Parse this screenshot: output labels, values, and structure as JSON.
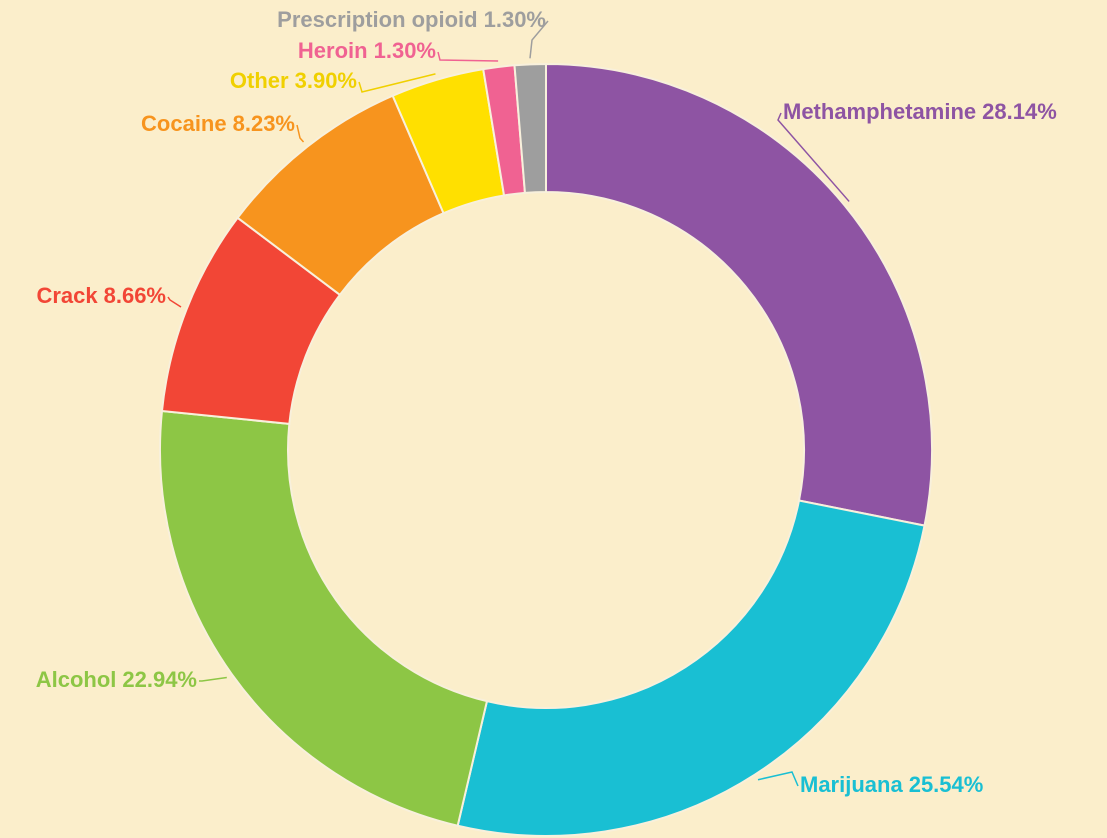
{
  "chart_data": {
    "type": "donut",
    "categories": [
      "Methamphetamine",
      "Marijuana",
      "Alcohol",
      "Crack",
      "Cocaine",
      "Other",
      "Heroin",
      "Prescription opioid"
    ],
    "values": [
      28.14,
      25.54,
      22.94,
      8.66,
      8.23,
      3.9,
      1.3,
      1.3
    ],
    "value_labels": [
      "28.14%",
      "25.54%",
      "22.94%",
      "8.66%",
      "8.23%",
      "3.90%",
      "1.30%",
      "1.30%"
    ],
    "colors": [
      "#8e54a3",
      "#19bfd3",
      "#8dc645",
      "#f24636",
      "#f7941e",
      "#ffe000",
      "#f06292",
      "#9e9e9e"
    ]
  }
}
